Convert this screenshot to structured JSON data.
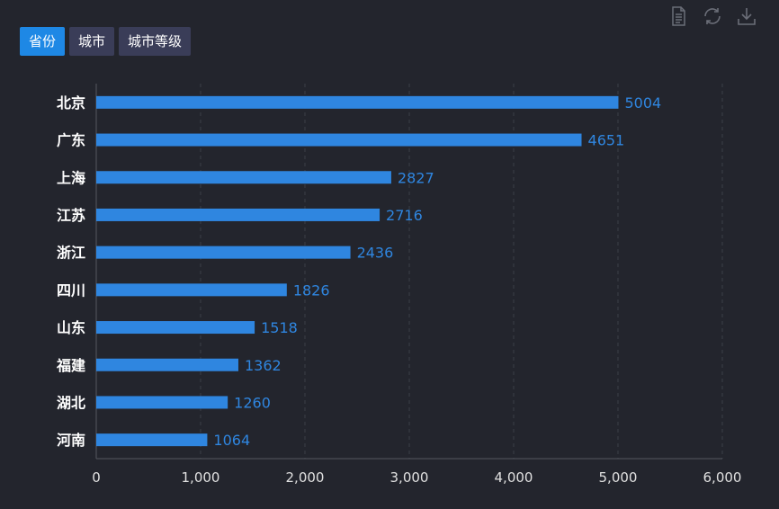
{
  "tabs": [
    {
      "label": "省份",
      "active": true
    },
    {
      "label": "城市",
      "active": false
    },
    {
      "label": "城市等级",
      "active": false
    }
  ],
  "toolbox": {
    "icons": [
      "data-view-icon",
      "restore-icon",
      "save-image-icon"
    ],
    "color": "#6b6e78"
  },
  "colors": {
    "background": "#23252d",
    "bar": "#2f86e0",
    "label": "#2f86e0",
    "tab_active": "#1e88e5",
    "tab_inactive": "#3a3d58"
  },
  "chart_data": {
    "type": "bar",
    "orientation": "horizontal",
    "categories": [
      "北京",
      "广东",
      "上海",
      "江苏",
      "浙江",
      "四川",
      "山东",
      "福建",
      "湖北",
      "河南"
    ],
    "values": [
      5004,
      4651,
      2827,
      2716,
      2436,
      1826,
      1518,
      1362,
      1260,
      1064
    ],
    "xlim": [
      0,
      6000
    ],
    "x_ticks": [
      "0",
      "1,000",
      "2,000",
      "3,000",
      "4,000",
      "5,000",
      "6,000"
    ],
    "grid": "vertical-dashed",
    "data_labels": true,
    "legend": "none"
  }
}
